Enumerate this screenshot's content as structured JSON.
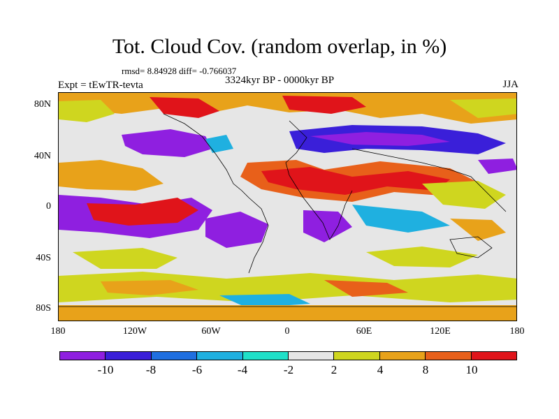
{
  "title": "Tot. Cloud Cov. (random overlap, in %)",
  "stats": "rmsd= 8.84928 diff= -0.766037",
  "experiment": "Expt = tEwTR-tevta",
  "period": "3324kyr BP - 0000kyr BP",
  "season": "JJA",
  "axes": {
    "lat_labels": [
      "80N",
      "40N",
      "0",
      "40S",
      "80S"
    ],
    "lon_labels": [
      "180",
      "120W",
      "60W",
      "0",
      "60E",
      "120E",
      "180"
    ]
  },
  "colorbar": {
    "colors": [
      "#8f1fe0",
      "#3a1fd9",
      "#1f6fe0",
      "#1fb0e0",
      "#1fe0c8",
      "#e6e6e6",
      "#cfd61f",
      "#e8a21a",
      "#e8601a",
      "#e0141a"
    ],
    "labels": [
      "-10",
      "-8",
      "-6",
      "-4",
      "-2",
      "2",
      "4",
      "8",
      "10"
    ]
  },
  "colors": {
    "strong_negative": "#8f1fe0",
    "negative": "#1f6fe0",
    "near_zero": "#e6e6e6",
    "positive": "#e8a21a",
    "strong_positive": "#e0141a",
    "coastline": "#000000"
  }
}
